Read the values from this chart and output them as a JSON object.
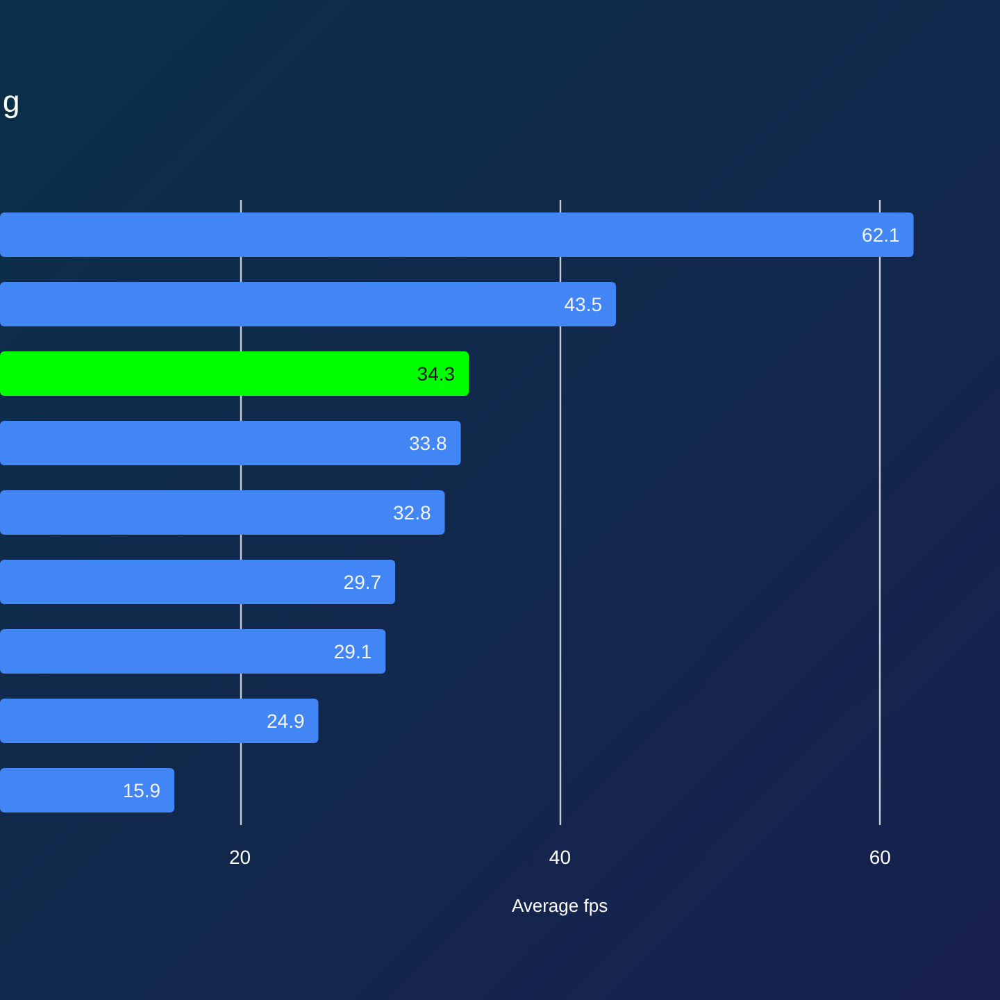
{
  "chart_data": {
    "type": "bar",
    "orientation": "horizontal",
    "title": "g",
    "xlabel": "Average fps",
    "categories": [
      null,
      null,
      null,
      null,
      null,
      null,
      null,
      null,
      null
    ],
    "values": [
      62.1,
      43.5,
      34.3,
      33.8,
      32.8,
      29.7,
      29.1,
      24.9,
      15.9
    ],
    "colors": [
      "#4285f4",
      "#4285f4",
      "#00ff00",
      "#4285f4",
      "#4285f4",
      "#4285f4",
      "#4285f4",
      "#4285f4",
      "#4285f4"
    ],
    "xlim": [
      5,
      67.5
    ],
    "xticks": [
      20,
      40,
      60
    ],
    "grid": "x",
    "data_labels": true,
    "tick_labels": "x"
  }
}
